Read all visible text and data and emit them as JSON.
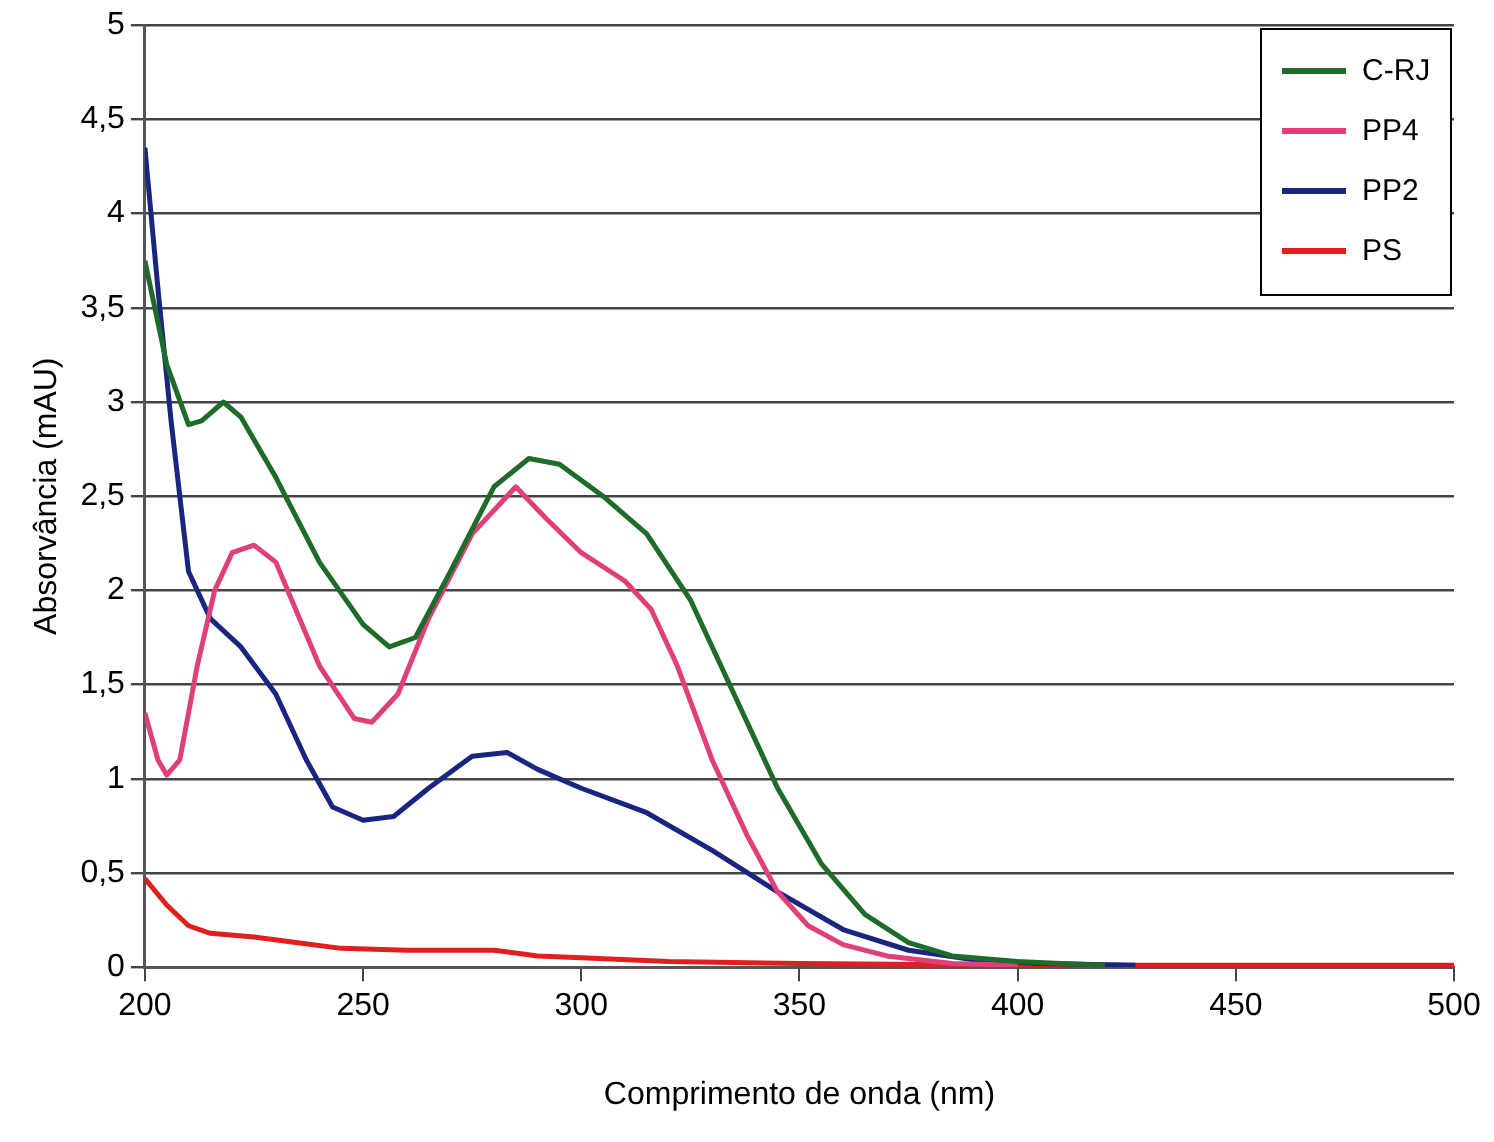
{
  "chart_data": {
    "type": "line",
    "xlabel": "Comprimento de onda (nm)",
    "ylabel": "Absorvância (mAU)",
    "xlim": [
      200,
      500
    ],
    "xticks": [
      200,
      250,
      300,
      350,
      400,
      450,
      500
    ],
    "ylim": [
      0,
      5
    ],
    "yticks": [
      0,
      {
        "value": 0.5,
        "label": "0,5"
      },
      1,
      {
        "value": 1.5,
        "label": "1,5"
      },
      2,
      {
        "value": 2.5,
        "label": "2,5"
      },
      3,
      {
        "value": 3.5,
        "label": "3,5"
      },
      4,
      {
        "value": 4.5,
        "label": "4,5"
      },
      5
    ],
    "grid": "y",
    "legend": "top right",
    "marker": "none",
    "line_style": "solid",
    "series": [
      {
        "name": "C-RJ",
        "color": "#1e6b2a",
        "x": [
          200,
          205,
          210,
          213,
          218,
          222,
          230,
          240,
          250,
          256,
          262,
          270,
          280,
          288,
          295,
          305,
          315,
          325,
          335,
          345,
          355,
          365,
          375,
          385,
          400,
          410,
          420
        ],
        "values": [
          3.75,
          3.2,
          2.88,
          2.9,
          3.0,
          2.92,
          2.6,
          2.15,
          1.82,
          1.7,
          1.75,
          2.1,
          2.55,
          2.7,
          2.67,
          2.5,
          2.3,
          1.95,
          1.45,
          0.95,
          0.55,
          0.28,
          0.13,
          0.06,
          0.03,
          0.02,
          0.01
        ]
      },
      {
        "name": "PP4",
        "color": "#e0407a",
        "x": [
          200,
          203,
          205,
          208,
          212,
          216,
          220,
          225,
          230,
          240,
          248,
          252,
          258,
          265,
          275,
          285,
          292,
          300,
          310,
          316,
          322,
          330,
          338,
          345,
          352,
          360,
          370,
          385,
          400
        ],
        "values": [
          1.35,
          1.1,
          1.02,
          1.1,
          1.6,
          2.0,
          2.2,
          2.24,
          2.15,
          1.6,
          1.32,
          1.3,
          1.45,
          1.85,
          2.3,
          2.55,
          2.38,
          2.2,
          2.05,
          1.9,
          1.6,
          1.1,
          0.7,
          0.4,
          0.22,
          0.12,
          0.06,
          0.02,
          0.01
        ]
      },
      {
        "name": "PP2",
        "color": "#1a2580",
        "x": [
          200,
          203,
          206,
          210,
          215,
          222,
          230,
          237,
          243,
          250,
          257,
          265,
          275,
          283,
          290,
          300,
          315,
          330,
          345,
          360,
          375,
          390,
          405,
          427
        ],
        "values": [
          4.35,
          3.6,
          2.9,
          2.1,
          1.85,
          1.7,
          1.45,
          1.1,
          0.85,
          0.78,
          0.8,
          0.95,
          1.12,
          1.14,
          1.05,
          0.95,
          0.82,
          0.62,
          0.4,
          0.2,
          0.09,
          0.04,
          0.02,
          0.01
        ]
      },
      {
        "name": "PS",
        "color": "#e02020",
        "x": [
          200,
          205,
          210,
          215,
          225,
          235,
          245,
          260,
          280,
          290,
          300,
          320,
          350,
          400,
          500
        ],
        "values": [
          0.47,
          0.33,
          0.22,
          0.18,
          0.16,
          0.13,
          0.1,
          0.09,
          0.09,
          0.06,
          0.05,
          0.03,
          0.02,
          0.01,
          0.01
        ]
      }
    ]
  }
}
